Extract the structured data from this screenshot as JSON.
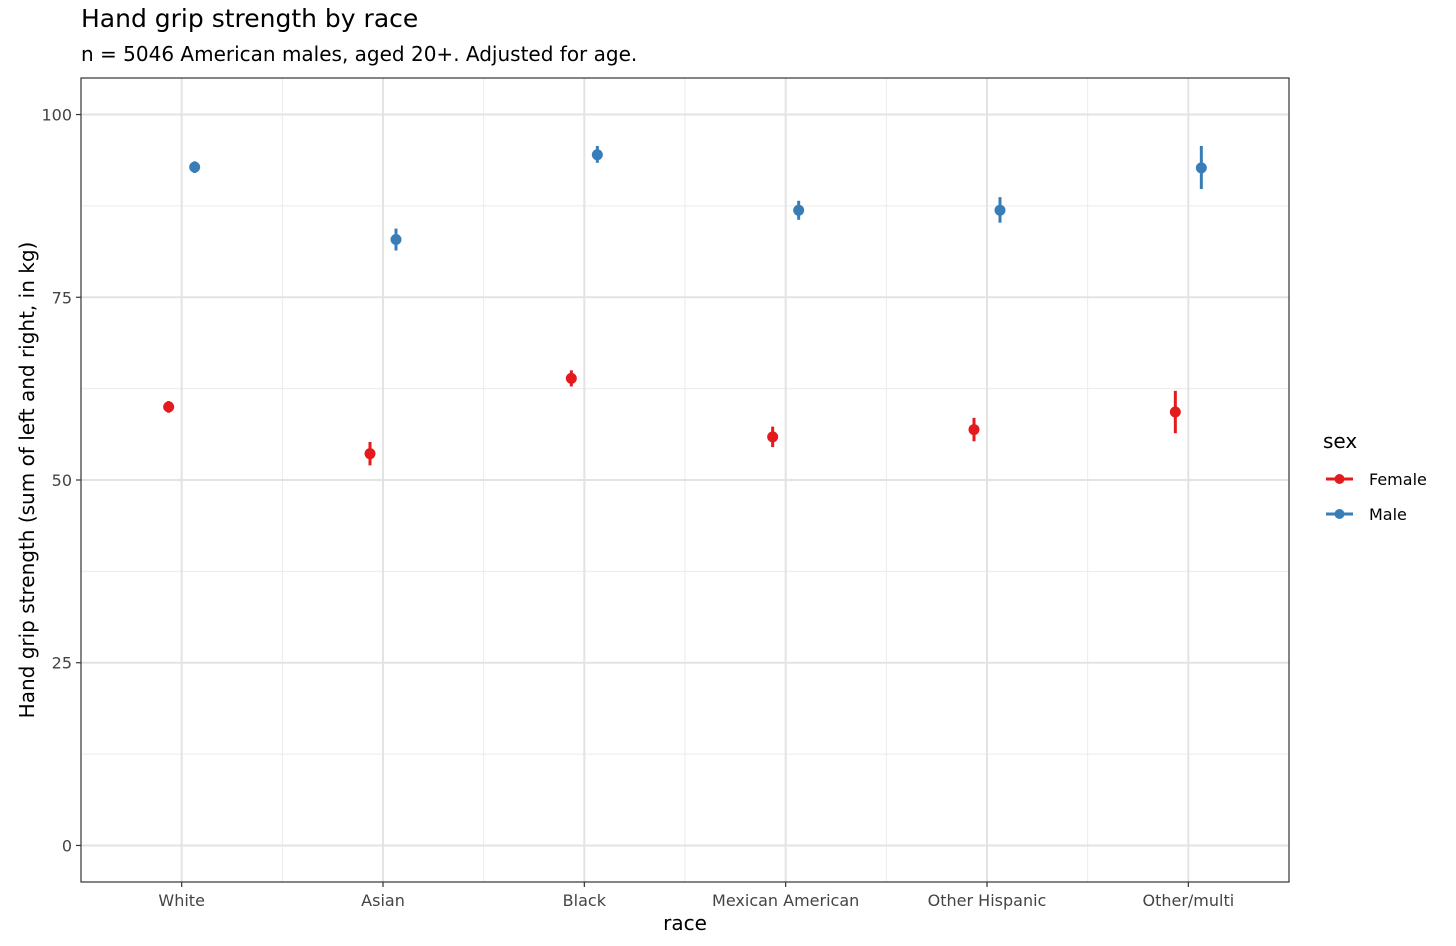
{
  "chart_data": {
    "type": "scatter",
    "title": "Hand grip strength by race",
    "subtitle": "n = 5046 American males, aged 20+. Adjusted for age.",
    "xlabel": "race",
    "ylabel": "Hand grip strength (sum of left and right, in kg)",
    "categories": [
      "White",
      "Asian",
      "Black",
      "Mexican American",
      "Other Hispanic",
      "Other/multi"
    ],
    "yticks": [
      0,
      25,
      50,
      75,
      100
    ],
    "ylim": [
      -5,
      105
    ],
    "grid": true,
    "legend": {
      "title": "sex",
      "placement": "right"
    },
    "series": [
      {
        "name": "Female",
        "color": "#e41a1c",
        "values": [
          60.0,
          53.6,
          63.9,
          55.9,
          56.9,
          59.3
        ],
        "lower": [
          59.2,
          52.0,
          62.8,
          54.5,
          55.3,
          56.4
        ],
        "upper": [
          60.8,
          55.2,
          65.0,
          57.3,
          58.5,
          62.2
        ]
      },
      {
        "name": "Male",
        "color": "#377eb8",
        "values": [
          92.8,
          82.9,
          94.5,
          86.9,
          86.9,
          92.7
        ],
        "lower": [
          92.0,
          81.4,
          93.4,
          85.6,
          85.2,
          89.8
        ],
        "upper": [
          93.6,
          84.4,
          95.7,
          88.2,
          88.7,
          95.7
        ]
      }
    ]
  }
}
